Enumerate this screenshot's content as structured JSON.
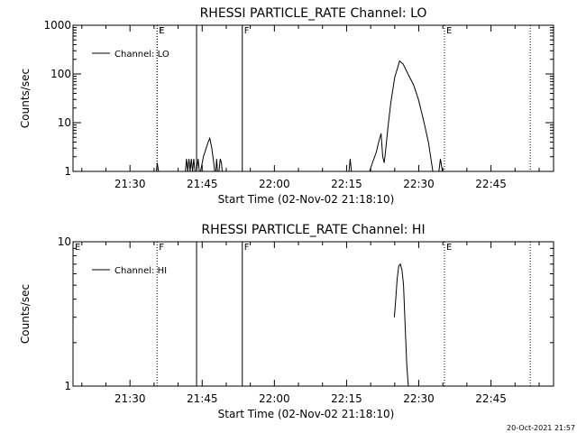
{
  "footer_stamp": "20-Oct-2021 21:57",
  "colors": {
    "background": "#ffffff",
    "ink": "#000000"
  },
  "chart_data": [
    {
      "type": "line",
      "title": "RHESSI PARTICLE_RATE Channel: LO",
      "xlabel": "Start Time (02-Nov-02 21:18:10)",
      "ylabel": "Counts/sec",
      "y_scale": "log",
      "xlim": [
        "21:18:10",
        "22:58:00"
      ],
      "ylim": [
        1,
        1000
      ],
      "x_ticks": [
        "21:30",
        "21:45",
        "22:00",
        "22:15",
        "22:30",
        "22:45"
      ],
      "y_ticks": [
        1,
        10,
        100,
        1000
      ],
      "y_tick_labels": [
        "1",
        "10",
        "100",
        "1000"
      ],
      "legend": {
        "placement": "top-left",
        "entries": [
          "Channel: LO"
        ]
      },
      "markers": [
        {
          "time": "21:35:38",
          "label": "E",
          "style": "dotted"
        },
        {
          "time": "21:35:38",
          "label": "F",
          "style": "dotted"
        },
        {
          "time": "21:43:50",
          "label": "",
          "style": "solid"
        },
        {
          "time": "21:53:20",
          "label": "F",
          "style": "solid"
        },
        {
          "time": "22:35:20",
          "label": "E",
          "style": "dotted"
        },
        {
          "time": "22:53:10",
          "label": "",
          "style": "dotted"
        }
      ],
      "series": [
        {
          "name": "Channel: LO",
          "segments": [
            [
              [
                "21:35:30",
                1
              ],
              [
                "21:35:40",
                1.5
              ],
              [
                "21:35:55",
                1
              ]
            ],
            [
              [
                "21:41:30",
                1
              ],
              [
                "21:41:45",
                1.8
              ],
              [
                "21:42:00",
                1
              ],
              [
                "21:42:15",
                1.8
              ],
              [
                "21:42:30",
                1
              ],
              [
                "21:42:45",
                1.8
              ],
              [
                "21:43:00",
                1
              ],
              [
                "21:43:15",
                1.8
              ],
              [
                "21:43:30",
                1
              ]
            ],
            [
              [
                "21:43:50",
                1
              ],
              [
                "21:44:10",
                1.8
              ],
              [
                "21:44:25",
                1
              ]
            ],
            [
              [
                "21:44:40",
                1
              ],
              [
                "21:45:15",
                2
              ],
              [
                "21:45:50",
                3
              ],
              [
                "21:46:15",
                4
              ],
              [
                "21:46:35",
                4.8
              ],
              [
                "21:47:00",
                3
              ],
              [
                "21:47:20",
                1.7
              ],
              [
                "21:47:35",
                1
              ]
            ],
            [
              [
                "21:47:50",
                1
              ],
              [
                "21:48:00",
                1.8
              ],
              [
                "21:48:12",
                1
              ]
            ],
            [
              [
                "21:48:30",
                1
              ],
              [
                "21:48:45",
                1.8
              ],
              [
                "21:49:00",
                1.5
              ],
              [
                "21:49:10",
                1
              ]
            ],
            [
              [
                "22:15:30",
                1
              ],
              [
                "22:15:45",
                1.8
              ],
              [
                "22:16:00",
                1
              ]
            ],
            [
              [
                "22:19:45",
                1
              ],
              [
                "22:21:10",
                2.5
              ],
              [
                "22:21:40",
                4
              ],
              [
                "22:22:10",
                6
              ],
              [
                "22:22:30",
                2
              ],
              [
                "22:22:50",
                1.5
              ],
              [
                "22:23:10",
                3
              ],
              [
                "22:23:35",
                8
              ],
              [
                "22:24:10",
                25
              ],
              [
                "22:25:00",
                85
              ],
              [
                "22:25:45",
                150
              ],
              [
                "22:26:00",
                185
              ],
              [
                "22:26:45",
                160
              ],
              [
                "22:27:45",
                100
              ],
              [
                "22:28:55",
                60
              ],
              [
                "22:29:55",
                30
              ],
              [
                "22:30:55",
                12
              ],
              [
                "22:32:00",
                4
              ],
              [
                "22:32:55",
                1
              ]
            ],
            [
              [
                "22:34:10",
                1
              ],
              [
                "22:34:30",
                1.8
              ],
              [
                "22:34:55",
                1
              ]
            ]
          ]
        }
      ]
    },
    {
      "type": "line",
      "title": "RHESSI PARTICLE_RATE Channel: HI",
      "xlabel": "Start Time (02-Nov-02 21:18:10)",
      "ylabel": "Counts/sec",
      "y_scale": "log",
      "xlim": [
        "21:18:10",
        "22:58:00"
      ],
      "ylim": [
        1,
        10
      ],
      "x_ticks": [
        "21:30",
        "21:45",
        "22:00",
        "22:15",
        "22:30",
        "22:45"
      ],
      "y_ticks": [
        1,
        10
      ],
      "y_tick_labels": [
        "1",
        "10"
      ],
      "legend": {
        "placement": "top-left",
        "entries": [
          "Channel: HI"
        ]
      },
      "markers": [
        {
          "time": "21:18:10",
          "label": "E",
          "style": "none"
        },
        {
          "time": "21:35:38",
          "label": "F",
          "style": "dotted"
        },
        {
          "time": "21:43:50",
          "label": "",
          "style": "solid"
        },
        {
          "time": "21:53:20",
          "label": "F",
          "style": "solid"
        },
        {
          "time": "22:35:20",
          "label": "E",
          "style": "dotted"
        },
        {
          "time": "22:53:10",
          "label": "",
          "style": "dotted"
        }
      ],
      "series": [
        {
          "name": "Channel: HI",
          "segments": [
            [
              [
                "22:24:55",
                3
              ],
              [
                "22:25:10",
                3.8
              ],
              [
                "22:25:30",
                5.5
              ],
              [
                "22:25:50",
                6.8
              ],
              [
                "22:26:10",
                7
              ],
              [
                "22:26:30",
                6.4
              ],
              [
                "22:26:50",
                5
              ],
              [
                "22:27:10",
                2.6
              ],
              [
                "22:27:30",
                1.4
              ],
              [
                "22:27:50",
                1
              ]
            ]
          ]
        }
      ]
    }
  ]
}
